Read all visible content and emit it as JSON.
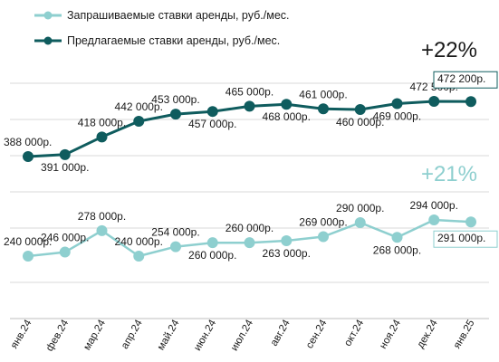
{
  "chart_data": {
    "type": "line",
    "categories": [
      "янв.24",
      "фев.24",
      "мар.24",
      "апр.24",
      "май.24",
      "июн.24",
      "июл.24",
      "авг.24",
      "сен.24",
      "окт.24",
      "ноя.24",
      "дек.24",
      "янв.25"
    ],
    "series": [
      {
        "name": "Запрашиваемые ставки аренды, руб./мес.",
        "color": "#8ecfcf",
        "values": [
          240000,
          246000,
          278000,
          240000,
          254000,
          260000,
          260000,
          263000,
          269000,
          290000,
          268000,
          294000,
          291000
        ],
        "labels": [
          "240 000р.",
          "246 000р.",
          "278 000р.",
          "240 000р.",
          "254 000р.",
          "260 000р.",
          "260 000р.",
          "263 000р.",
          "269 000р.",
          "290 000р.",
          "268 000р.",
          "294 000р.",
          "291 000р."
        ],
        "change": "+21%"
      },
      {
        "name": "Предлагаемые ставки аренды, руб./мес.",
        "color": "#0f5c5e",
        "values": [
          388000,
          391000,
          418000,
          442000,
          453000,
          457000,
          465000,
          468000,
          461000,
          460000,
          469000,
          472500,
          472200
        ],
        "labels": [
          "388 000р.",
          "391 000р.",
          "418 000р.",
          "442 000р.",
          "453 000р.",
          "457 000р.",
          "465 000р.",
          "468 000р.",
          "461 000р.",
          "460 000р.",
          "469 000р.",
          "472 500р.",
          "472 200р."
        ],
        "change": "+22%"
      }
    ],
    "legend_position": "top-left",
    "grid": true
  }
}
